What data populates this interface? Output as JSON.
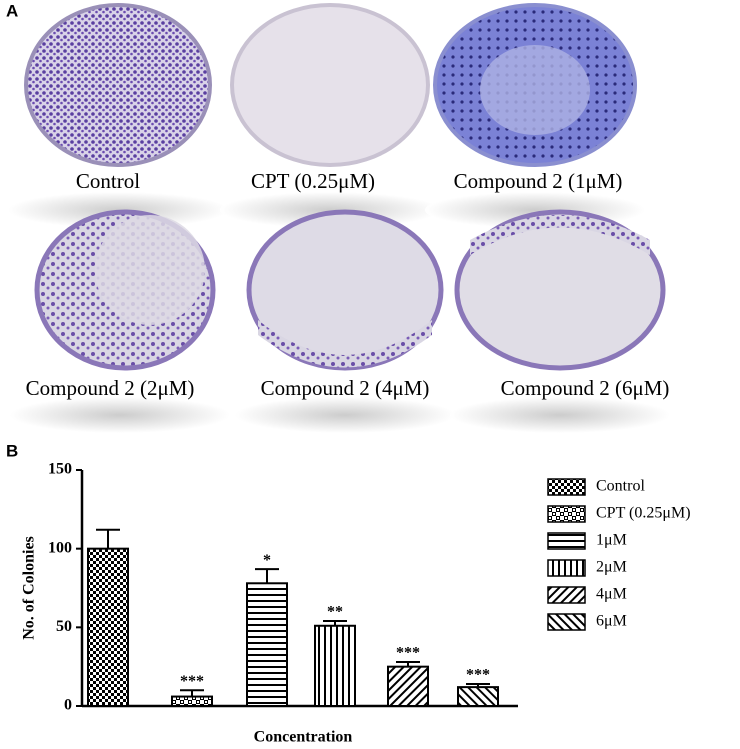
{
  "panel_labels": [
    "A",
    "B"
  ],
  "plates": [
    "Control",
    "CPT (0.25μM)",
    "Compound 2 (1μM)",
    "Compound 2 (2μM)",
    "Compound 2 (4μM)",
    "Compound 2 (6μM)"
  ],
  "chart_data": {
    "type": "bar",
    "categories": [
      "Control",
      "CPT (0.25μM)",
      "1μM",
      "2μM",
      "4μM",
      "6μM"
    ],
    "values": [
      100,
      6,
      78,
      51,
      25,
      12
    ],
    "errors": [
      12,
      4,
      9,
      3,
      3,
      2
    ],
    "significance": [
      null,
      "***",
      "*",
      "**",
      "***",
      "***"
    ],
    "y_label": "No. of Colonies",
    "x_label": "Concentration",
    "ylim": [
      0,
      150
    ],
    "yticks": [
      0,
      50,
      100,
      150
    ]
  }
}
